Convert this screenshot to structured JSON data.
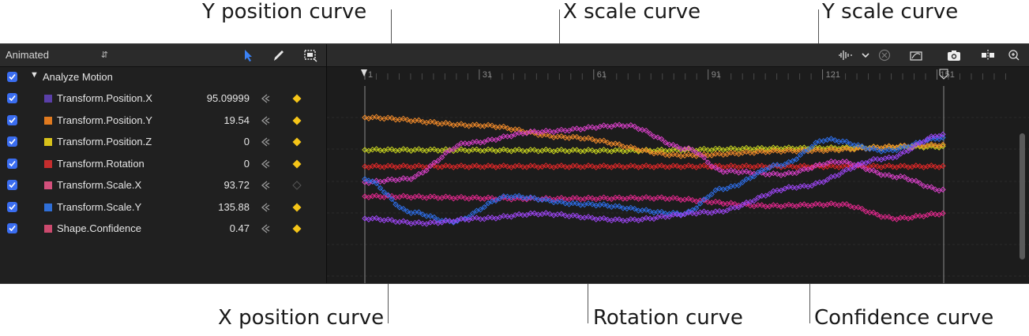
{
  "callouts": {
    "y_position": "Y position curve",
    "x_scale": "X scale curve",
    "y_scale": "Y scale curve",
    "x_position": "X position curve",
    "rotation": "Rotation curve",
    "confidence": "Confidence curve"
  },
  "toolbar": {
    "mode": "Animated",
    "icons": [
      "select-arrow-icon",
      "pencil-icon",
      "frame-select-icon"
    ]
  },
  "graph_toolbar": {
    "icons": [
      "audio-waveform-icon",
      "chevron-down-icon",
      "clear-icon",
      "fit-curve-icon",
      "snapshot-camera-icon",
      "snap-icon",
      "zoom-icon"
    ]
  },
  "behavior": {
    "label": "Analyze Motion",
    "checked": true
  },
  "parameters": [
    {
      "label": "Transform.Position.X",
      "value": "95.09999",
      "color": "#5a3fa8",
      "keyframe": true
    },
    {
      "label": "Transform.Position.Y",
      "value": "19.54",
      "color": "#e07a1f",
      "keyframe": true
    },
    {
      "label": "Transform.Position.Z",
      "value": "0",
      "color": "#d8c21a",
      "keyframe": true
    },
    {
      "label": "Transform.Rotation",
      "value": "0",
      "color": "#c42d2d",
      "keyframe": true
    },
    {
      "label": "Transform.Scale.X",
      "value": "93.72",
      "color": "#d2507c",
      "keyframe": false
    },
    {
      "label": "Transform.Scale.Y",
      "value": "135.88",
      "color": "#2f6fd8",
      "keyframe": true
    },
    {
      "label": "Shape.Confidence",
      "value": "0.47",
      "color": "#cc4a6e",
      "keyframe": true
    }
  ],
  "ruler": {
    "labels": [
      "1",
      "31",
      "61",
      "91",
      "121",
      "151"
    ]
  },
  "curve_colors": {
    "position_x": "#9b45f0",
    "position_y": "#f08a2a",
    "position_z": "#c8d420",
    "rotation": "#e02828",
    "scale_x": "#d640c6",
    "scale_y": "#2e6ee8",
    "confidence": "#e0288c",
    "keyframe": "#f5c518"
  }
}
